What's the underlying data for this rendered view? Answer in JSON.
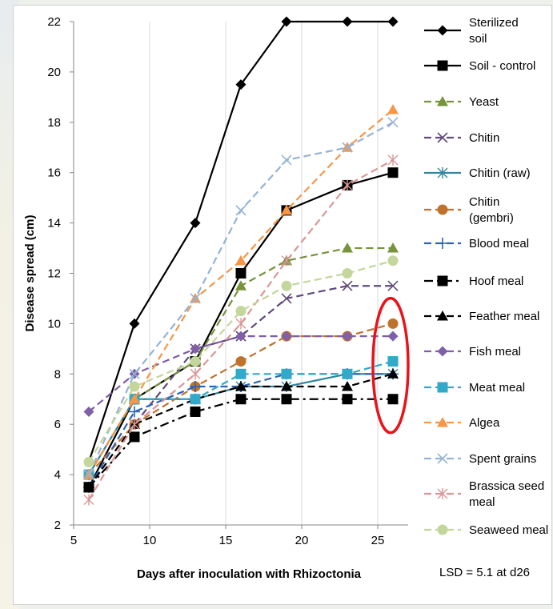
{
  "chart_data": {
    "type": "line",
    "title": "",
    "xlabel": "Days after inoculation with Rhizoctonia",
    "ylabel": "Disease spread (cm)",
    "xlim": [
      5,
      27
    ],
    "ylim": [
      2,
      22
    ],
    "xticks": [
      5,
      10,
      15,
      20,
      25
    ],
    "yticks": [
      2,
      4,
      6,
      8,
      10,
      12,
      14,
      16,
      18,
      20,
      22
    ],
    "x": [
      6,
      9,
      13,
      16,
      19,
      23,
      26
    ],
    "grid": "vertical gridlines only",
    "legend_position": "right",
    "annotation": "LSD = 5.1 at d26",
    "highlight": "red ellipse around day-26 values",
    "highlight_color": "#e8141b",
    "series": [
      {
        "name": "Sterilized soil",
        "values": [
          4.5,
          10,
          14,
          19.5,
          22,
          22,
          22
        ],
        "color": "#000000",
        "dash": "solid",
        "marker": "diamond"
      },
      {
        "name": "Soil - control",
        "values": [
          3.5,
          7,
          8.5,
          12,
          14.5,
          15.5,
          16
        ],
        "color": "#000000",
        "dash": "solid",
        "marker": "square"
      },
      {
        "name": "Yeast",
        "values": [
          4,
          7,
          8.5,
          11.5,
          12.5,
          13,
          13
        ],
        "color": "#77933c",
        "dash": "dash",
        "marker": "triangle"
      },
      {
        "name": "Chitin",
        "values": [
          3.5,
          6,
          9,
          9.5,
          11,
          11.5,
          11.5
        ],
        "color": "#604a7b",
        "dash": "dash",
        "marker": "x"
      },
      {
        "name": "Chitin (raw)",
        "values": [
          4,
          7,
          7,
          7.5,
          7.5,
          8,
          8
        ],
        "color": "#31859c",
        "dash": "solid",
        "marker": "star"
      },
      {
        "name": "Chitin (gembri)",
        "values": [
          4,
          6,
          7.5,
          8.5,
          9.5,
          9.5,
          10
        ],
        "color": "#c0722c",
        "dash": "dash",
        "marker": "circle"
      },
      {
        "name": "Blood meal",
        "values": [
          3.5,
          6.5,
          7.5,
          7.5,
          8,
          8,
          8
        ],
        "color": "#2e64b5",
        "dash": "dash",
        "marker": "plus"
      },
      {
        "name": "Hoof meal",
        "values": [
          3.5,
          5.5,
          6.5,
          7,
          7,
          7,
          7
        ],
        "color": "#000000",
        "dash": "dashdot",
        "marker": "square"
      },
      {
        "name": "Feather meal",
        "values": [
          3.5,
          6,
          7,
          7.5,
          7.5,
          7.5,
          8
        ],
        "color": "#000000",
        "dash": "dash",
        "marker": "triangle"
      },
      {
        "name": "Fish meal",
        "values": [
          6.5,
          8,
          9,
          9.5,
          9.5,
          9.5,
          9.5
        ],
        "color": "#7f5fa8",
        "dash": "dash",
        "marker": "diamond"
      },
      {
        "name": "Meat meal",
        "values": [
          4,
          7,
          7,
          8,
          8,
          8,
          8.5
        ],
        "color": "#31a9c9",
        "dash": "dash",
        "marker": "square"
      },
      {
        "name": "Algea",
        "values": [
          4,
          7,
          11,
          12.5,
          14.5,
          17,
          18.5
        ],
        "color": "#f79646",
        "dash": "dash",
        "marker": "triangle"
      },
      {
        "name": "Spent grains",
        "values": [
          4,
          8,
          11,
          14.5,
          16.5,
          17,
          18
        ],
        "color": "#95b3d7",
        "dash": "dash",
        "marker": "x"
      },
      {
        "name": "Brassica seed meal",
        "values": [
          3,
          6,
          8,
          10,
          12.5,
          15.5,
          16.5
        ],
        "color": "#d99795",
        "dash": "dash",
        "marker": "star"
      },
      {
        "name": "Seaweed meal",
        "values": [
          4.5,
          7.5,
          8.5,
          10.5,
          11.5,
          12,
          12.5
        ],
        "color": "#c3d69b",
        "dash": "dash",
        "marker": "circle"
      }
    ]
  }
}
